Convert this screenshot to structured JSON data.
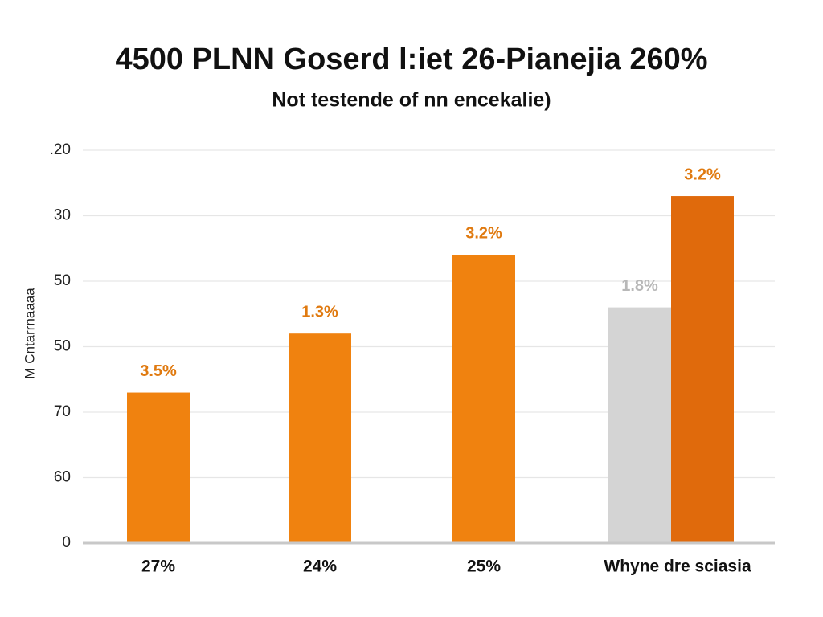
{
  "chart_data": {
    "type": "bar",
    "title": "4500 PLNN Goserd l:iet 26-Pianejia 260%",
    "subtitle": "Not testende of nn encekalie)",
    "y_label": "M Cntarrnaaaa",
    "categories": [
      "27%",
      "24%",
      "25%",
      "Whyne dre sciasia"
    ],
    "series": [
      {
        "color": "#f0820f",
        "values": [
          2.3,
          3.2,
          4.4,
          null
        ],
        "labels": [
          "3.5%",
          "1.3%",
          "3.2%",
          null
        ],
        "label_color": "#e07a10"
      },
      {
        "color": "#d4d4d4",
        "values": [
          null,
          null,
          null,
          3.6
        ],
        "labels": [
          null,
          null,
          null,
          "1.8%"
        ],
        "label_color": "#b8b8b8"
      },
      {
        "color": "#e06a0c",
        "values": [
          null,
          null,
          null,
          5.3
        ],
        "labels": [
          null,
          null,
          null,
          "3.2%"
        ],
        "label_color": "#e07a10"
      }
    ],
    "ylim": [
      0,
      6
    ],
    "yticks": [
      {
        "value": 0,
        "label": "0"
      },
      {
        "value": 1,
        "label": "60"
      },
      {
        "value": 2,
        "label": "70"
      },
      {
        "value": 3,
        "label": "50"
      },
      {
        "value": 4,
        "label": "50"
      },
      {
        "value": 5,
        "label": "30"
      },
      {
        "value": 6,
        "label": ".20"
      }
    ],
    "grid": true
  }
}
